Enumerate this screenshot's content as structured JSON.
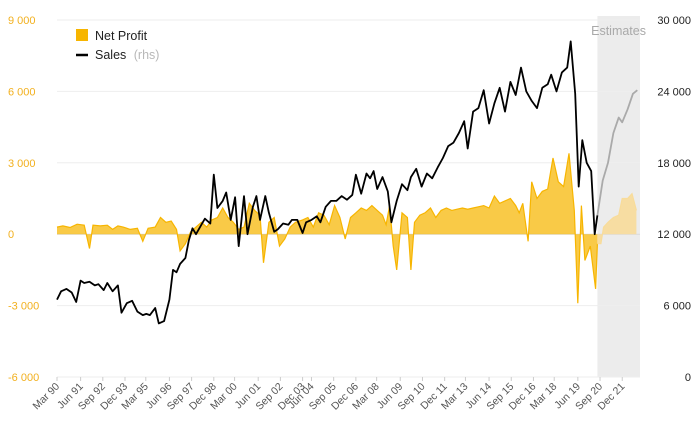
{
  "chart_data": {
    "type": "line",
    "annotation": "Estimates",
    "legend": {
      "placement": "top-left",
      "items": [
        {
          "series": "net_profit",
          "label": "Net Profit",
          "note": "",
          "color": "#f7b500",
          "marker": "square"
        },
        {
          "series": "sales",
          "label": "Sales",
          "note": "(rhs)",
          "color": "#000000",
          "marker": "line"
        }
      ]
    },
    "axes": {
      "y_left": {
        "min": -6000,
        "max": 9000,
        "ticks": [
          -6000,
          -3000,
          0,
          3000,
          6000,
          9000
        ],
        "tick_labels": [
          "-6 000",
          "-3 000",
          "0",
          "3 000",
          "6 000",
          "9 000"
        ],
        "color": "#f2b01e"
      },
      "y_right": {
        "min": 0,
        "max": 30000,
        "ticks": [
          0,
          6000,
          12000,
          18000,
          24000,
          30000
        ],
        "tick_labels": [
          "0",
          "6 000",
          "12 000",
          "18 000",
          "24 000",
          "30 000"
        ],
        "color": "#222222"
      },
      "x": {
        "start": 1990.17,
        "end": 2023.0,
        "estimates_from": 2020.6,
        "ticks": [
          {
            "label": "Mar 90",
            "t": 1990.17
          },
          {
            "label": "Jun 91",
            "t": 1991.5
          },
          {
            "label": "Sep 92",
            "t": 1992.75
          },
          {
            "label": "Dec 93",
            "t": 1994.0
          },
          {
            "label": "Mar 95",
            "t": 1995.17
          },
          {
            "label": "Jun 96",
            "t": 1996.5
          },
          {
            "label": "Sep 97",
            "t": 1997.75
          },
          {
            "label": "Dec 98",
            "t": 1999.0
          },
          {
            "label": "Mar 00",
            "t": 2000.17
          },
          {
            "label": "Jun 01",
            "t": 2001.5
          },
          {
            "label": "Sep 02",
            "t": 2002.75
          },
          {
            "label": "Dec 03",
            "t": 2004.0
          },
          {
            "label": "Jun 04",
            "t": 2004.5
          },
          {
            "label": "Sep 05",
            "t": 2005.75
          },
          {
            "label": "Dec 06",
            "t": 2007.0
          },
          {
            "label": "Mar 08",
            "t": 2008.17
          },
          {
            "label": "Jun 09",
            "t": 2009.5
          },
          {
            "label": "Sep 10",
            "t": 2010.75
          },
          {
            "label": "Dec 11",
            "t": 2012.0
          },
          {
            "label": "Mar 13",
            "t": 2013.17
          },
          {
            "label": "Jun 14",
            "t": 2014.5
          },
          {
            "label": "Sep 15",
            "t": 2015.75
          },
          {
            "label": "Dec 16",
            "t": 2017.0
          },
          {
            "label": "Mar 18",
            "t": 2018.17
          },
          {
            "label": "Jun 19",
            "t": 2019.5
          },
          {
            "label": "Sep 20",
            "t": 2020.75
          },
          {
            "label": "Dec 21",
            "t": 2022.0
          }
        ]
      }
    },
    "series": [
      {
        "id": "net_profit",
        "name": "Net Profit",
        "axis": "left",
        "color": "#f7b500",
        "estimate_color": "#f8dc9a",
        "points": [
          [
            1990.17,
            300
          ],
          [
            1990.5,
            350
          ],
          [
            1990.9,
            280
          ],
          [
            1991.3,
            420
          ],
          [
            1991.7,
            380
          ],
          [
            1992.0,
            -600
          ],
          [
            1992.2,
            380
          ],
          [
            1992.6,
            350
          ],
          [
            1993.0,
            380
          ],
          [
            1993.3,
            200
          ],
          [
            1993.6,
            350
          ],
          [
            1993.9,
            300
          ],
          [
            1994.3,
            200
          ],
          [
            1994.7,
            250
          ],
          [
            1995.0,
            -300
          ],
          [
            1995.3,
            250
          ],
          [
            1995.7,
            300
          ],
          [
            1996.0,
            700
          ],
          [
            1996.3,
            500
          ],
          [
            1996.6,
            550
          ],
          [
            1996.9,
            200
          ],
          [
            1997.1,
            -700
          ],
          [
            1997.4,
            -400
          ],
          [
            1997.7,
            100
          ],
          [
            1998.0,
            300
          ],
          [
            1998.3,
            500
          ],
          [
            1998.6,
            300
          ],
          [
            1998.9,
            600
          ],
          [
            1999.2,
            700
          ],
          [
            1999.5,
            1100
          ],
          [
            1999.8,
            700
          ],
          [
            2000.1,
            500
          ],
          [
            2000.4,
            200
          ],
          [
            2000.7,
            300
          ],
          [
            2001.0,
            1300
          ],
          [
            2001.3,
            1000
          ],
          [
            2001.6,
            800
          ],
          [
            2001.8,
            -1200
          ],
          [
            2002.1,
            500
          ],
          [
            2002.4,
            700
          ],
          [
            2002.7,
            -500
          ],
          [
            2003.0,
            -200
          ],
          [
            2003.3,
            300
          ],
          [
            2003.6,
            500
          ],
          [
            2004.0,
            600
          ],
          [
            2004.3,
            700
          ],
          [
            2004.6,
            300
          ],
          [
            2004.9,
            900
          ],
          [
            2005.2,
            800
          ],
          [
            2005.5,
            400
          ],
          [
            2005.8,
            1200
          ],
          [
            2006.1,
            700
          ],
          [
            2006.4,
            -200
          ],
          [
            2006.7,
            700
          ],
          [
            2007.0,
            900
          ],
          [
            2007.3,
            1100
          ],
          [
            2007.6,
            1000
          ],
          [
            2007.9,
            1200
          ],
          [
            2008.2,
            1000
          ],
          [
            2008.5,
            800
          ],
          [
            2008.7,
            400
          ],
          [
            2008.9,
            1200
          ],
          [
            2009.1,
            -500
          ],
          [
            2009.3,
            -1500
          ],
          [
            2009.6,
            900
          ],
          [
            2009.9,
            700
          ],
          [
            2010.1,
            -1500
          ],
          [
            2010.3,
            500
          ],
          [
            2010.6,
            800
          ],
          [
            2010.9,
            900
          ],
          [
            2011.2,
            1100
          ],
          [
            2011.5,
            700
          ],
          [
            2011.8,
            1000
          ],
          [
            2012.1,
            1100
          ],
          [
            2012.4,
            1000
          ],
          [
            2012.7,
            1050
          ],
          [
            2013.0,
            1100
          ],
          [
            2013.3,
            1050
          ],
          [
            2013.6,
            1100
          ],
          [
            2013.9,
            1150
          ],
          [
            2014.2,
            1200
          ],
          [
            2014.5,
            1100
          ],
          [
            2014.8,
            1600
          ],
          [
            2015.1,
            1300
          ],
          [
            2015.4,
            1400
          ],
          [
            2015.7,
            1500
          ],
          [
            2016.0,
            1200
          ],
          [
            2016.2,
            900
          ],
          [
            2016.4,
            1300
          ],
          [
            2016.7,
            -300
          ],
          [
            2016.9,
            2200
          ],
          [
            2017.2,
            1500
          ],
          [
            2017.5,
            1800
          ],
          [
            2017.8,
            1900
          ],
          [
            2018.1,
            3200
          ],
          [
            2018.4,
            2200
          ],
          [
            2018.7,
            2000
          ],
          [
            2019.0,
            3400
          ],
          [
            2019.3,
            1000
          ],
          [
            2019.5,
            -2900
          ],
          [
            2019.7,
            1200
          ],
          [
            2019.9,
            -1100
          ],
          [
            2020.2,
            -500
          ],
          [
            2020.5,
            -2300
          ],
          [
            2020.6,
            -400
          ]
        ],
        "estimate_points": [
          [
            2020.6,
            -400
          ],
          [
            2020.8,
            -400
          ],
          [
            2020.95,
            300
          ],
          [
            2021.2,
            500
          ],
          [
            2021.5,
            700
          ],
          [
            2021.8,
            800
          ],
          [
            2022.0,
            1500
          ],
          [
            2022.3,
            1500
          ],
          [
            2022.55,
            1700
          ],
          [
            2022.8,
            1000
          ]
        ]
      },
      {
        "id": "sales",
        "name": "Sales",
        "axis": "right",
        "color": "#000000",
        "estimate_color": "#aaaaaa",
        "points": [
          [
            1990.17,
            6500
          ],
          [
            1990.4,
            7200
          ],
          [
            1990.7,
            7400
          ],
          [
            1991.0,
            7100
          ],
          [
            1991.25,
            6300
          ],
          [
            1991.5,
            8100
          ],
          [
            1991.7,
            7900
          ],
          [
            1992.0,
            8000
          ],
          [
            1992.3,
            7700
          ],
          [
            1992.5,
            7800
          ],
          [
            1992.8,
            7300
          ],
          [
            1993.0,
            7900
          ],
          [
            1993.3,
            7200
          ],
          [
            1993.6,
            7700
          ],
          [
            1993.8,
            5400
          ],
          [
            1994.1,
            6200
          ],
          [
            1994.4,
            6400
          ],
          [
            1994.7,
            5500
          ],
          [
            1995.0,
            5200
          ],
          [
            1995.2,
            5300
          ],
          [
            1995.4,
            5200
          ],
          [
            1995.7,
            5800
          ],
          [
            1995.9,
            4500
          ],
          [
            1996.2,
            4700
          ],
          [
            1996.5,
            6500
          ],
          [
            1996.7,
            9000
          ],
          [
            1996.9,
            8800
          ],
          [
            1997.1,
            9500
          ],
          [
            1997.4,
            10000
          ],
          [
            1997.6,
            11500
          ],
          [
            1997.8,
            12500
          ],
          [
            1998.0,
            12000
          ],
          [
            1998.3,
            12800
          ],
          [
            1998.5,
            13300
          ],
          [
            1998.8,
            12900
          ],
          [
            1999.0,
            17000
          ],
          [
            1999.2,
            14200
          ],
          [
            1999.5,
            14800
          ],
          [
            1999.7,
            15500
          ],
          [
            1999.95,
            13200
          ],
          [
            2000.2,
            15100
          ],
          [
            2000.4,
            11000
          ],
          [
            2000.7,
            15200
          ],
          [
            2000.9,
            12000
          ],
          [
            2001.2,
            14300
          ],
          [
            2001.4,
            15200
          ],
          [
            2001.6,
            13200
          ],
          [
            2001.9,
            15200
          ],
          [
            2002.1,
            13800
          ],
          [
            2002.4,
            12200
          ],
          [
            2002.6,
            12400
          ],
          [
            2002.9,
            12900
          ],
          [
            2003.2,
            12800
          ],
          [
            2003.4,
            13200
          ],
          [
            2003.7,
            13200
          ],
          [
            2004.0,
            12100
          ],
          [
            2004.2,
            13000
          ],
          [
            2004.5,
            13200
          ],
          [
            2004.8,
            13500
          ],
          [
            2005.0,
            13000
          ],
          [
            2005.3,
            14300
          ],
          [
            2005.6,
            14800
          ],
          [
            2005.9,
            14800
          ],
          [
            2006.2,
            15200
          ],
          [
            2006.5,
            14900
          ],
          [
            2006.8,
            15300
          ],
          [
            2007.0,
            17000
          ],
          [
            2007.3,
            15400
          ],
          [
            2007.6,
            17100
          ],
          [
            2007.8,
            16700
          ],
          [
            2008.0,
            17300
          ],
          [
            2008.2,
            15800
          ],
          [
            2008.5,
            16800
          ],
          [
            2008.8,
            15600
          ],
          [
            2009.0,
            13000
          ],
          [
            2009.3,
            14800
          ],
          [
            2009.6,
            16200
          ],
          [
            2009.9,
            15700
          ],
          [
            2010.1,
            16800
          ],
          [
            2010.4,
            17500
          ],
          [
            2010.7,
            16000
          ],
          [
            2011.0,
            17100
          ],
          [
            2011.3,
            16700
          ],
          [
            2011.6,
            17600
          ],
          [
            2011.9,
            18400
          ],
          [
            2012.2,
            19400
          ],
          [
            2012.5,
            19700
          ],
          [
            2012.8,
            20500
          ],
          [
            2013.1,
            21500
          ],
          [
            2013.3,
            19200
          ],
          [
            2013.6,
            22300
          ],
          [
            2013.9,
            22600
          ],
          [
            2014.2,
            24100
          ],
          [
            2014.5,
            21300
          ],
          [
            2014.8,
            23000
          ],
          [
            2015.1,
            24300
          ],
          [
            2015.4,
            22300
          ],
          [
            2015.7,
            24800
          ],
          [
            2016.0,
            23700
          ],
          [
            2016.3,
            26000
          ],
          [
            2016.6,
            24000
          ],
          [
            2016.9,
            23200
          ],
          [
            2017.2,
            22600
          ],
          [
            2017.5,
            24300
          ],
          [
            2017.8,
            24600
          ],
          [
            2018.0,
            25400
          ],
          [
            2018.3,
            24000
          ],
          [
            2018.6,
            25600
          ],
          [
            2018.9,
            26000
          ],
          [
            2019.1,
            28200
          ],
          [
            2019.35,
            23800
          ],
          [
            2019.55,
            16000
          ],
          [
            2019.75,
            19900
          ],
          [
            2020.0,
            18000
          ],
          [
            2020.25,
            17300
          ],
          [
            2020.45,
            12000
          ],
          [
            2020.6,
            13600
          ]
        ],
        "estimate_points": [
          [
            2020.6,
            13600
          ],
          [
            2020.9,
            16500
          ],
          [
            2021.2,
            18000
          ],
          [
            2021.5,
            20500
          ],
          [
            2021.8,
            21800
          ],
          [
            2022.0,
            21400
          ],
          [
            2022.3,
            22500
          ],
          [
            2022.6,
            23800
          ],
          [
            2022.85,
            24100
          ]
        ]
      }
    ]
  }
}
